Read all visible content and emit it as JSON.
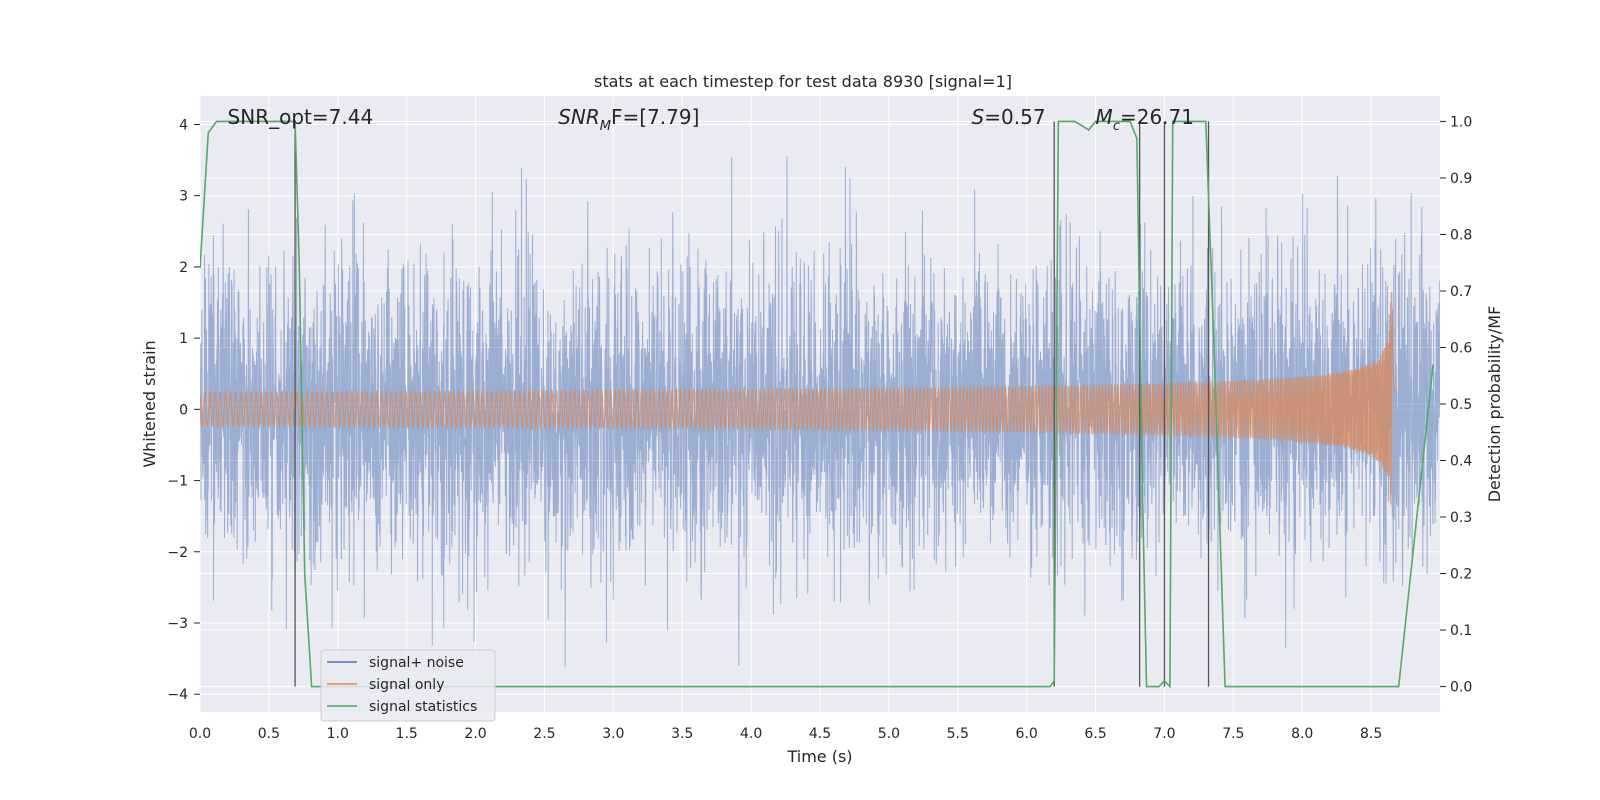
{
  "chart_data": {
    "type": "line",
    "title": "stats at each timestep for test data 8930 [signal=1]",
    "xlabel": "Time (s)",
    "ylabel": "Whitened strain",
    "y2label": "Detection probability/MF",
    "xlim": [
      0.0,
      9.0
    ],
    "ylim": [
      -4.25,
      4.4
    ],
    "y2lim": [
      -0.045,
      1.045
    ],
    "xticks": [
      "0.0",
      "0.5",
      "1.0",
      "1.5",
      "2.0",
      "2.5",
      "3.0",
      "3.5",
      "4.0",
      "4.5",
      "5.0",
      "5.5",
      "6.0",
      "6.5",
      "7.0",
      "7.5",
      "8.0",
      "8.5"
    ],
    "yticks": [
      "−4",
      "−3",
      "−2",
      "−1",
      "0",
      "1",
      "2",
      "3",
      "4"
    ],
    "y2ticks": [
      "0.0",
      "0.1",
      "0.2",
      "0.3",
      "0.4",
      "0.5",
      "0.6",
      "0.7",
      "0.8",
      "0.9",
      "1.0"
    ],
    "grid": true,
    "legend_position": "lower-left",
    "annotations": [
      {
        "name": "snr-opt",
        "text": "SNR_opt=7.44",
        "x": 0.2
      },
      {
        "name": "snr-mf",
        "pre": "SNR",
        "sub": "M",
        "post": "F=[7.79]",
        "x": 2.6
      },
      {
        "name": "s-value",
        "pre": "S",
        "post": "=0.57",
        "x": 5.6
      },
      {
        "name": "mc-value",
        "pre": "M",
        "sub": "c",
        "post": "=26.71",
        "x": 6.5
      }
    ],
    "series": [
      {
        "name": "signal+ noise",
        "color": "#4c72b0",
        "noise_std": 1.05,
        "t_start": 0.0,
        "t_end": 9.0
      },
      {
        "name": "signal only",
        "color": "#dd8452",
        "merger_time": 8.65,
        "peak_amplitude": 1.65,
        "t_start": 0.0,
        "t_end": 8.67
      },
      {
        "name": "signal statistics",
        "color": "#55a868",
        "x": [
          0.0,
          0.06,
          0.12,
          0.3,
          0.5,
          0.69,
          0.72,
          0.76,
          0.81,
          1.0,
          2.0,
          3.0,
          4.0,
          5.0,
          6.0,
          6.17,
          6.2,
          6.23,
          6.3,
          6.35,
          6.45,
          6.5,
          6.55,
          6.75,
          6.8,
          6.84,
          6.87,
          6.96,
          7.0,
          7.04,
          7.06,
          7.1,
          7.3,
          7.36,
          7.44,
          7.6,
          8.0,
          8.5,
          8.7,
          8.95
        ],
        "y": [
          0.74,
          0.98,
          1.0,
          1.0,
          1.0,
          1.0,
          0.75,
          0.2,
          0.0,
          0.0,
          0.0,
          0.0,
          0.0,
          0.0,
          0.0,
          0.0,
          0.01,
          1.0,
          1.0,
          1.0,
          0.985,
          1.0,
          1.0,
          1.0,
          0.97,
          0.35,
          0.0,
          0.0,
          0.01,
          0.0,
          1.0,
          1.0,
          1.0,
          0.6,
          0.0,
          0.0,
          0.0,
          0.0,
          0.0,
          0.57
        ]
      }
    ],
    "vlines": [
      0.69,
      6.2,
      6.82,
      7.0,
      7.32
    ]
  }
}
